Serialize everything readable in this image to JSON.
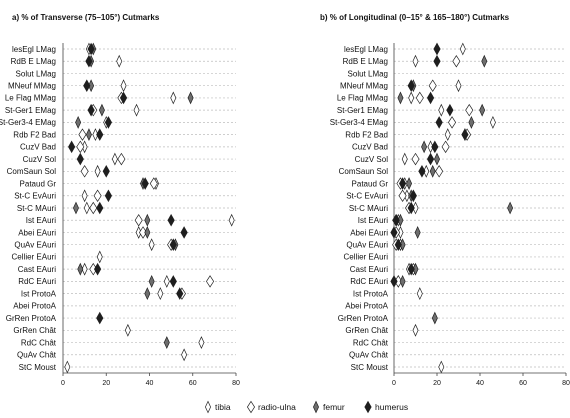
{
  "legend": [
    {
      "key": "tibia",
      "label": "tibia",
      "fill": "#ffffff"
    },
    {
      "key": "radio_ulna",
      "label": "radio-ulna",
      "fill": "#ffffff"
    },
    {
      "key": "femur",
      "label": "femur",
      "fill": "#6e6e6e"
    },
    {
      "key": "humerus",
      "label": "humerus",
      "fill": "#1e1e1e"
    }
  ],
  "colors": {
    "tibia": "#ffffff",
    "radio_ulna": "#ffffff",
    "femur": "#6e6e6e",
    "humerus": "#1e1e1e",
    "stroke": "#222222",
    "grid": "#bdbdbd"
  },
  "chart_data": [
    {
      "type": "scatter",
      "panel_letter": "a)",
      "title": "% of Transverse (75–105°) Cutmarks",
      "xlim": [
        0,
        80
      ],
      "xticks": [
        0,
        20,
        40,
        60,
        80
      ],
      "grid": "horizontal dashed",
      "categories": [
        "lesEgl LMag",
        "RdB E LMag",
        "Solut LMag",
        "MNeuf MMag",
        "Le Flag MMag",
        "St-Ger1 EMag",
        "St-Ger3-4 EMag",
        "Rdb F2 Bad",
        "CuzV Bad",
        "CuzV Sol",
        "ComSaun Sol",
        "Pataud Gr",
        "St-C EvAuri",
        "St-C MAuri",
        "Ist EAuri",
        "Abei EAuri",
        "QuAv EAuri",
        "Cellier EAuri",
        "Cast EAuri",
        "RdC EAuri",
        "Ist ProtoA",
        "Abei ProtoA",
        "GrRen ProtoA",
        "GrRen Chât",
        "RdC Chât",
        "QuAv Chât",
        "StC Moust"
      ],
      "series": [
        {
          "name": "tibia",
          "values": [
            12,
            26,
            null,
            28,
            51,
            34,
            20,
            15,
            10,
            24,
            16,
            43,
            10,
            11,
            78,
            35,
            41,
            17,
            10,
            48,
            45,
            null,
            null,
            30,
            64,
            56,
            2
          ]
        },
        {
          "name": "radio-ulna",
          "values": [
            null,
            null,
            null,
            null,
            27,
            14,
            null,
            9,
            8,
            27,
            10,
            42,
            16,
            14,
            35,
            37,
            50,
            null,
            14,
            68,
            55,
            null,
            null,
            null,
            null,
            null,
            null
          ]
        },
        {
          "name": "femur",
          "values": [
            14,
            13,
            null,
            13,
            59,
            18,
            7,
            12,
            null,
            null,
            null,
            37,
            null,
            6,
            39,
            39,
            52,
            null,
            8,
            41,
            39,
            null,
            null,
            null,
            48,
            null,
            null
          ]
        },
        {
          "name": "humerus",
          "values": [
            13,
            12,
            null,
            11,
            28,
            13,
            21,
            17,
            4,
            8,
            20,
            38,
            21,
            17,
            50,
            56,
            51,
            null,
            16,
            51,
            54,
            null,
            17,
            null,
            null,
            null,
            null
          ]
        }
      ]
    },
    {
      "type": "scatter",
      "panel_letter": "b)",
      "title": "% of Longitudinal (0–15° & 165–180°) Cutmarks",
      "xlim": [
        0,
        80
      ],
      "xticks": [
        0,
        20,
        40,
        60,
        80
      ],
      "grid": "horizontal dashed",
      "categories": [
        "lesEgl LMag",
        "RdB E LMag",
        "Solut LMag",
        "MNeuf MMag",
        "Le Flag MMag",
        "St-Ger1 EMag",
        "St-Ger3-4 EMag",
        "Rdb F2 Bad",
        "CuzV Bad",
        "CuzV Sol",
        "ComSaun Sol",
        "Pataud Gr",
        "St-C EvAuri",
        "St-C MAuri",
        "Ist EAuri",
        "Abei EAuri",
        "QuAv EAuri",
        "Cellier EAuri",
        "Cast EAuri",
        "RdC EAuri",
        "Ist ProtoA",
        "Abei ProtoA",
        "GrRen ProtoA",
        "GrRen Chât",
        "RdC Chât",
        "QuAv Chât",
        "StC Moust"
      ],
      "series": [
        {
          "name": "tibia",
          "values": [
            32,
            10,
            null,
            30,
            8,
            22,
            46,
            25,
            17,
            5,
            15,
            5,
            6,
            10,
            2,
            3,
            3,
            null,
            7,
            2,
            12,
            null,
            null,
            10,
            null,
            null,
            22
          ]
        },
        {
          "name": "radio-ulna",
          "values": [
            null,
            29,
            null,
            18,
            12,
            35,
            27,
            34,
            24,
            10,
            21,
            3,
            4,
            7,
            1,
            1,
            1,
            null,
            9,
            2,
            null,
            null,
            null,
            null,
            null,
            null,
            null
          ]
        },
        {
          "name": "femur",
          "values": [
            20,
            42,
            null,
            9,
            3,
            41,
            36,
            33,
            14,
            20,
            18,
            7,
            8,
            54,
            3,
            11,
            4,
            null,
            10,
            4,
            null,
            null,
            19,
            null,
            null,
            null,
            null
          ]
        },
        {
          "name": "humerus",
          "values": [
            20,
            20,
            null,
            8,
            17,
            26,
            21,
            33,
            19,
            17,
            13,
            4,
            9,
            8,
            1,
            0,
            2,
            null,
            8,
            0,
            null,
            null,
            null,
            null,
            null,
            null,
            null
          ]
        }
      ]
    }
  ]
}
